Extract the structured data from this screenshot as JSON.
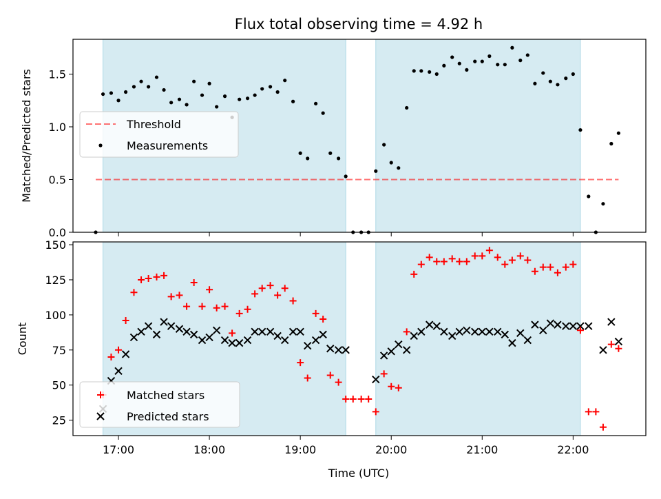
{
  "title": "Flux total observing time = 4.92 h",
  "colors": {
    "shade": "#add8e6",
    "threshold": "#ff0000",
    "measurements": "#000000",
    "matched": "#ff0000",
    "predicted": "#000000"
  },
  "chart_data": [
    {
      "type": "scatter",
      "name": "ratio-panel",
      "ylabel": "Matched/Predicted stars",
      "xlim": [
        16.5,
        22.8
      ],
      "ylim": [
        0,
        1.83
      ],
      "yticks": [
        0.0,
        0.5,
        1.0,
        1.5
      ],
      "ytick_labels": [
        "0.0",
        "0.5",
        "1.0",
        "1.5"
      ],
      "xtick_positions": [
        17,
        18,
        19,
        20,
        21,
        22
      ],
      "grid": false,
      "legend_position": "center-left",
      "shaded_intervals": [
        [
          16.83,
          19.5
        ],
        [
          19.83,
          22.08
        ]
      ],
      "threshold": {
        "label": "Threshold",
        "value": 0.5,
        "x_range": [
          16.75,
          22.5
        ]
      },
      "measurements": {
        "label": "Measurements",
        "x": [
          16.75,
          16.83,
          16.92,
          17.0,
          17.08,
          17.17,
          17.25,
          17.33,
          17.42,
          17.5,
          17.58,
          17.67,
          17.75,
          17.83,
          17.92,
          18.0,
          18.08,
          18.17,
          18.25,
          18.33,
          18.42,
          18.5,
          18.58,
          18.67,
          18.75,
          18.83,
          18.92,
          19.0,
          19.08,
          19.17,
          19.25,
          19.33,
          19.42,
          19.5,
          19.58,
          19.67,
          19.75,
          19.83,
          19.92,
          20.0,
          20.08,
          20.17,
          20.25,
          20.33,
          20.42,
          20.5,
          20.58,
          20.67,
          20.75,
          20.83,
          20.92,
          21.0,
          21.08,
          21.17,
          21.25,
          21.33,
          21.42,
          21.5,
          21.58,
          21.67,
          21.75,
          21.83,
          21.92,
          22.0,
          22.08,
          22.17,
          22.25,
          22.33,
          22.42,
          22.5
        ],
        "y": [
          0.0,
          1.31,
          1.32,
          1.25,
          1.33,
          1.38,
          1.43,
          1.38,
          1.47,
          1.35,
          1.23,
          1.26,
          1.21,
          1.43,
          1.3,
          1.41,
          1.19,
          1.29,
          1.09,
          1.26,
          1.27,
          1.3,
          1.36,
          1.38,
          1.33,
          1.44,
          1.24,
          0.75,
          0.7,
          1.22,
          1.13,
          0.75,
          0.7,
          0.53,
          0.0,
          0.0,
          0.0,
          0.58,
          0.83,
          0.66,
          0.61,
          1.18,
          1.53,
          1.53,
          1.52,
          1.5,
          1.58,
          1.66,
          1.6,
          1.54,
          1.62,
          1.62,
          1.67,
          1.59,
          1.59,
          1.75,
          1.63,
          1.68,
          1.41,
          1.51,
          1.43,
          1.4,
          1.46,
          1.5,
          0.97,
          0.34,
          0.0,
          0.27,
          0.84,
          0.94
        ]
      }
    },
    {
      "type": "scatter",
      "name": "count-panel",
      "ylabel": "Count",
      "xlabel": "Time (UTC)",
      "xlim": [
        16.5,
        22.8
      ],
      "ylim": [
        14,
        152
      ],
      "yticks": [
        25,
        50,
        75,
        100,
        125,
        150
      ],
      "ytick_labels": [
        "25",
        "50",
        "75",
        "100",
        "125",
        "150"
      ],
      "xticks": [
        17,
        18,
        19,
        20,
        21,
        22
      ],
      "xtick_labels": [
        "17:00",
        "18:00",
        "19:00",
        "20:00",
        "21:00",
        "22:00"
      ],
      "grid": false,
      "legend_position": "lower-left",
      "shaded_intervals": [
        [
          16.83,
          19.5
        ],
        [
          19.83,
          22.08
        ]
      ],
      "series": [
        {
          "name": "Matched stars",
          "marker": "plus",
          "x": [
            16.83,
            16.92,
            17.0,
            17.08,
            17.17,
            17.25,
            17.33,
            17.42,
            17.5,
            17.58,
            17.67,
            17.75,
            17.83,
            17.92,
            18.0,
            18.08,
            18.17,
            18.25,
            18.33,
            18.42,
            18.5,
            18.58,
            18.67,
            18.75,
            18.83,
            18.92,
            19.0,
            19.08,
            19.17,
            19.25,
            19.33,
            19.42,
            19.5,
            19.58,
            19.67,
            19.75,
            19.83,
            19.92,
            20.0,
            20.08,
            20.17,
            20.25,
            20.33,
            20.42,
            20.5,
            20.58,
            20.67,
            20.75,
            20.83,
            20.92,
            21.0,
            21.08,
            21.17,
            21.25,
            21.33,
            21.42,
            21.5,
            21.58,
            21.67,
            21.75,
            21.83,
            21.92,
            22.0,
            22.08,
            22.17,
            22.25,
            22.33,
            22.42,
            22.5
          ],
          "y": [
            43,
            70,
            75,
            96,
            116,
            125,
            126,
            127,
            128,
            113,
            114,
            106,
            123,
            106,
            118,
            105,
            106,
            87,
            101,
            104,
            115,
            119,
            121,
            114,
            119,
            110,
            66,
            55,
            101,
            97,
            57,
            52,
            40,
            40,
            40,
            40,
            31,
            58,
            49,
            48,
            88,
            129,
            136,
            141,
            138,
            138,
            140,
            138,
            138,
            142,
            142,
            146,
            141,
            136,
            139,
            142,
            139,
            131,
            134,
            134,
            130,
            134,
            136,
            89,
            31,
            31,
            20,
            79,
            76
          ]
        },
        {
          "name": "Predicted stars",
          "marker": "cross",
          "x": [
            16.83,
            16.92,
            17.0,
            17.08,
            17.17,
            17.25,
            17.33,
            17.42,
            17.5,
            17.58,
            17.67,
            17.75,
            17.83,
            17.92,
            18.0,
            18.08,
            18.17,
            18.25,
            18.33,
            18.42,
            18.5,
            18.58,
            18.67,
            18.75,
            18.83,
            18.92,
            19.0,
            19.08,
            19.17,
            19.25,
            19.33,
            19.42,
            19.5,
            19.83,
            19.92,
            20.0,
            20.08,
            20.17,
            20.25,
            20.33,
            20.42,
            20.5,
            20.58,
            20.67,
            20.75,
            20.83,
            20.92,
            21.0,
            21.08,
            21.17,
            21.25,
            21.33,
            21.42,
            21.5,
            21.58,
            21.67,
            21.75,
            21.83,
            21.92,
            22.0,
            22.08,
            22.17,
            22.33,
            22.42,
            22.5
          ],
          "y": [
            33,
            53,
            60,
            72,
            84,
            88,
            92,
            86,
            95,
            92,
            90,
            88,
            86,
            82,
            84,
            89,
            82,
            80,
            80,
            82,
            88,
            88,
            88,
            85,
            82,
            88,
            88,
            78,
            82,
            86,
            76,
            75,
            75,
            54,
            71,
            74,
            79,
            75,
            85,
            88,
            93,
            92,
            88,
            85,
            88,
            89,
            88,
            88,
            88,
            88,
            86,
            80,
            87,
            82,
            93,
            89,
            94,
            93,
            92,
            92,
            92,
            92,
            75,
            95,
            81
          ]
        }
      ]
    }
  ]
}
